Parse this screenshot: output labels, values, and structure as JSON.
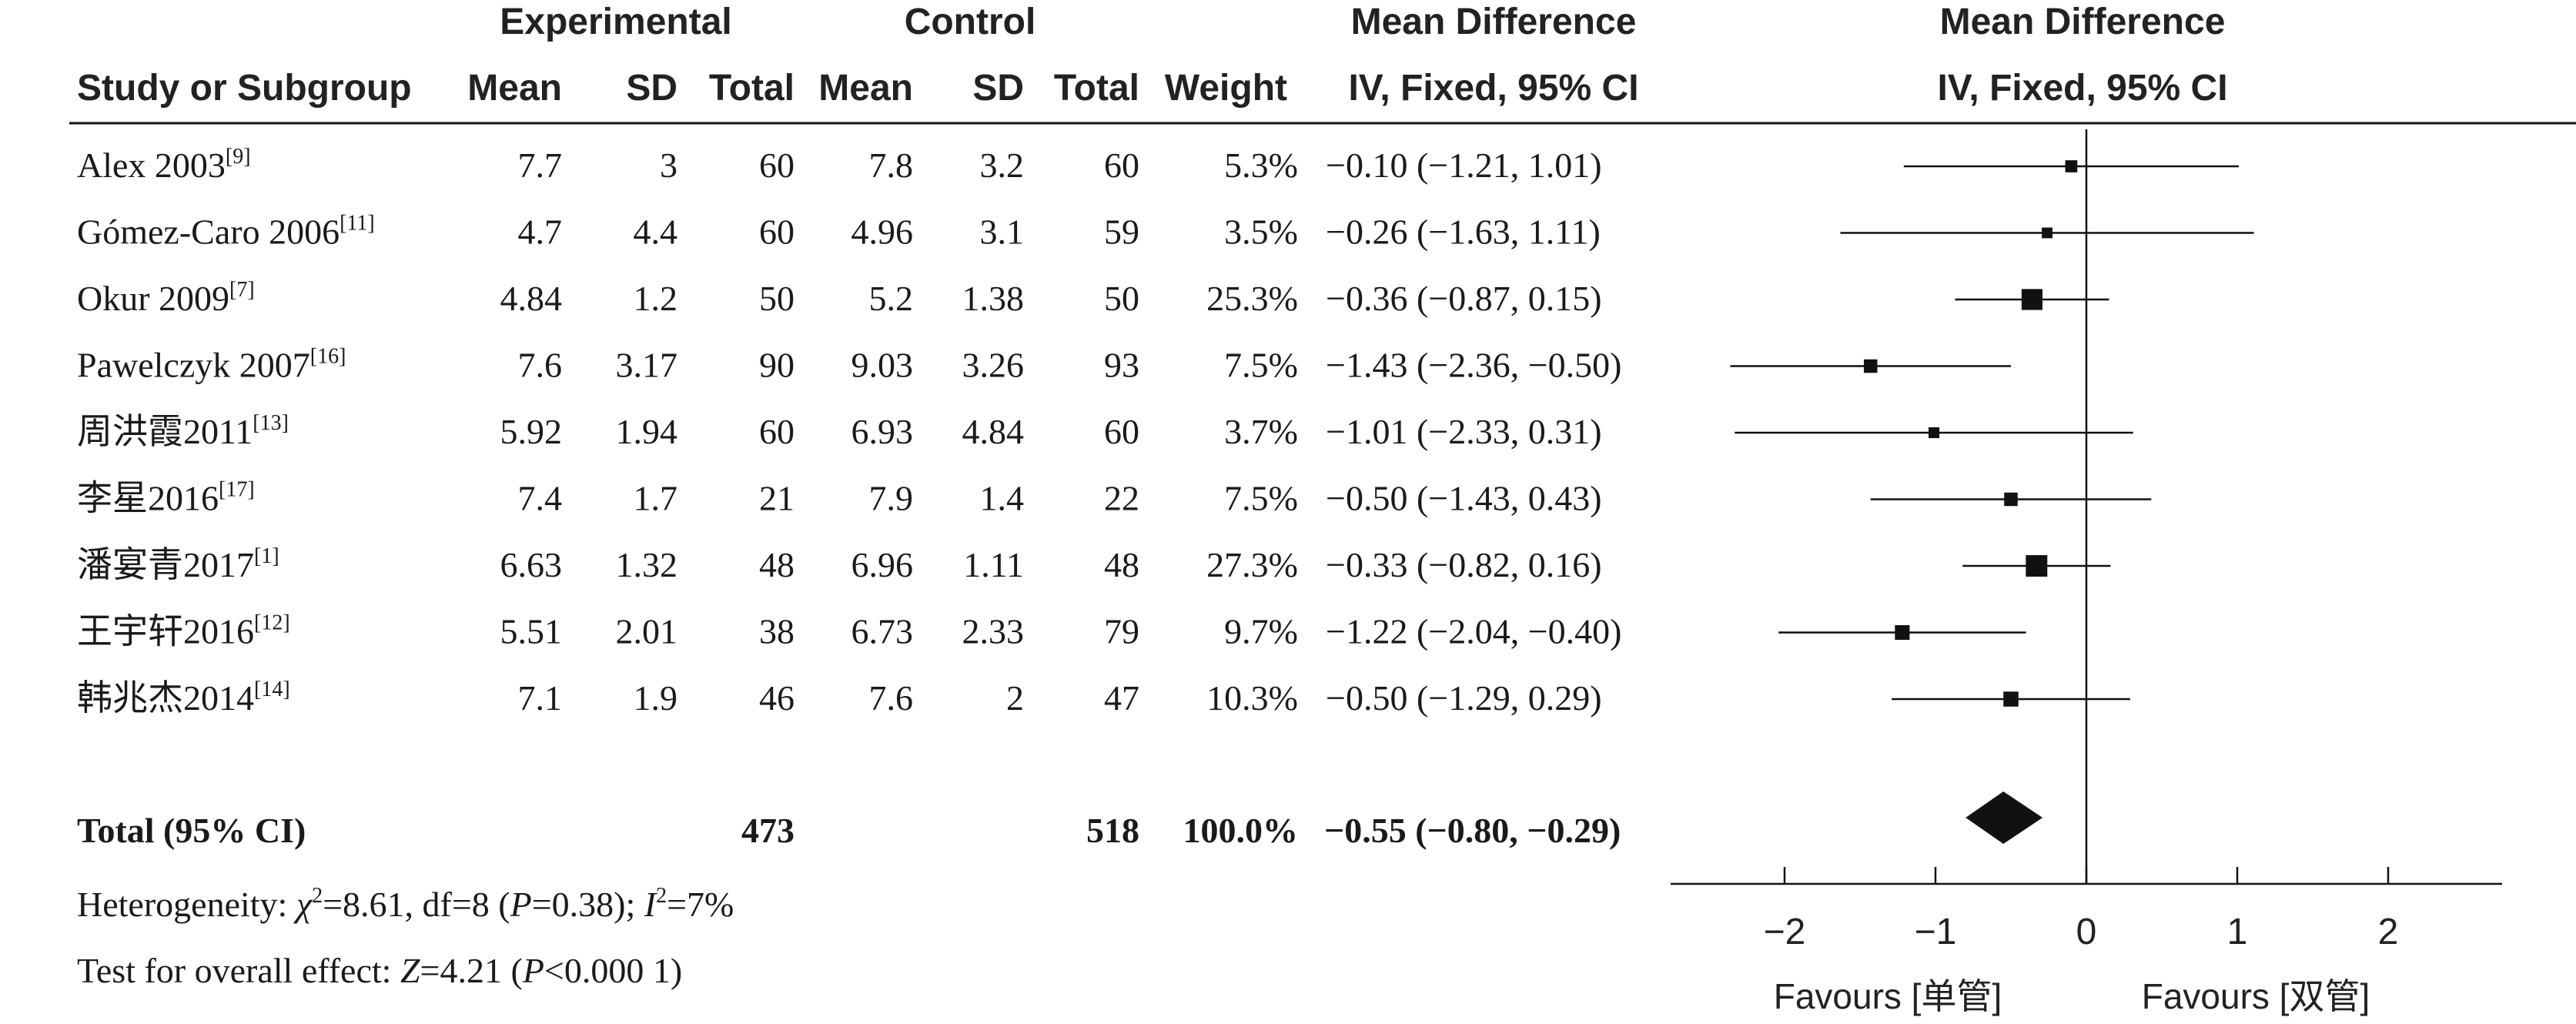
{
  "headers": {
    "group_experimental": "Experimental",
    "group_control": "Control",
    "group_md": "Mean Difference",
    "group_plot": "Mean Difference",
    "study": "Study or Subgroup",
    "mean": "Mean",
    "sd": "SD",
    "total": "Total",
    "weight": "Weight",
    "method": "IV, Fixed, 95% CI",
    "plot_method": "IV, Fixed, 95% CI"
  },
  "studies": [
    {
      "name": "Alex 2003",
      "ref": "[9]",
      "exp_mean": "7.7",
      "exp_sd": "3",
      "exp_total": "60",
      "ctl_mean": "7.8",
      "ctl_sd": "3.2",
      "ctl_total": "60",
      "weight": "5.3%",
      "ci_text": "−0.10 (−1.21, 1.01)",
      "md": -0.1,
      "lo": -1.21,
      "hi": 1.01,
      "w": 5.3
    },
    {
      "name": "Gómez-Caro 2006",
      "ref": "[11]",
      "exp_mean": "4.7",
      "exp_sd": "4.4",
      "exp_total": "60",
      "ctl_mean": "4.96",
      "ctl_sd": "3.1",
      "ctl_total": "59",
      "weight": "3.5%",
      "ci_text": "−0.26 (−1.63, 1.11)",
      "md": -0.26,
      "lo": -1.63,
      "hi": 1.11,
      "w": 3.5
    },
    {
      "name": "Okur 2009",
      "ref": "[7]",
      "exp_mean": "4.84",
      "exp_sd": "1.2",
      "exp_total": "50",
      "ctl_mean": "5.2",
      "ctl_sd": "1.38",
      "ctl_total": "50",
      "weight": "25.3%",
      "ci_text": "−0.36 (−0.87, 0.15)",
      "md": -0.36,
      "lo": -0.87,
      "hi": 0.15,
      "w": 25.3
    },
    {
      "name": "Pawelczyk 2007",
      "ref": "[16]",
      "exp_mean": "7.6",
      "exp_sd": "3.17",
      "exp_total": "90",
      "ctl_mean": "9.03",
      "ctl_sd": "3.26",
      "ctl_total": "93",
      "weight": "7.5%",
      "ci_text": "−1.43 (−2.36, −0.50)",
      "md": -1.43,
      "lo": -2.36,
      "hi": -0.5,
      "w": 7.5
    },
    {
      "name": "周洪霞2011",
      "ref": "[13]",
      "exp_mean": "5.92",
      "exp_sd": "1.94",
      "exp_total": "60",
      "ctl_mean": "6.93",
      "ctl_sd": "4.84",
      "ctl_total": "60",
      "weight": "3.7%",
      "ci_text": "−1.01 (−2.33, 0.31)",
      "md": -1.01,
      "lo": -2.33,
      "hi": 0.31,
      "w": 3.7
    },
    {
      "name": "李星2016",
      "ref": "[17]",
      "exp_mean": "7.4",
      "exp_sd": "1.7",
      "exp_total": "21",
      "ctl_mean": "7.9",
      "ctl_sd": "1.4",
      "ctl_total": "22",
      "weight": "7.5%",
      "ci_text": "−0.50 (−1.43, 0.43)",
      "md": -0.5,
      "lo": -1.43,
      "hi": 0.43,
      "w": 7.5
    },
    {
      "name": "潘宴青2017",
      "ref": "[1]",
      "exp_mean": "6.63",
      "exp_sd": "1.32",
      "exp_total": "48",
      "ctl_mean": "6.96",
      "ctl_sd": "1.11",
      "ctl_total": "48",
      "weight": "27.3%",
      "ci_text": "−0.33 (−0.82, 0.16)",
      "md": -0.33,
      "lo": -0.82,
      "hi": 0.16,
      "w": 27.3
    },
    {
      "name": "王宇轩2016",
      "ref": "[12]",
      "exp_mean": "5.51",
      "exp_sd": "2.01",
      "exp_total": "38",
      "ctl_mean": "6.73",
      "ctl_sd": "2.33",
      "ctl_total": "79",
      "weight": "9.7%",
      "ci_text": "−1.22 (−2.04, −0.40)",
      "md": -1.22,
      "lo": -2.04,
      "hi": -0.4,
      "w": 9.7
    },
    {
      "name": "韩兆杰2014",
      "ref": "[14]",
      "exp_mean": "7.1",
      "exp_sd": "1.9",
      "exp_total": "46",
      "ctl_mean": "7.6",
      "ctl_sd": "2",
      "ctl_total": "47",
      "weight": "10.3%",
      "ci_text": "−0.50 (−1.29, 0.29)",
      "md": -0.5,
      "lo": -1.29,
      "hi": 0.29,
      "w": 10.3
    }
  ],
  "total": {
    "label": "Total (95% CI)",
    "exp_total": "473",
    "ctl_total": "518",
    "weight": "100.0%",
    "ci_text": "−0.55 (−0.80, −0.29)",
    "md": -0.55,
    "lo": -0.8,
    "hi": -0.29
  },
  "heterogeneity": {
    "prefix": "Heterogeneity: ",
    "chi_symbol": "χ",
    "chi_value": "=8.61, df=8 (",
    "p_symbol": "P",
    "p_value": "=0.38); ",
    "i_symbol": "I",
    "i_value": "=7%"
  },
  "overall_effect": {
    "prefix": "Test for overall effect: ",
    "z_symbol": "Z",
    "z_value": "=4.21 (",
    "p_symbol": "P",
    "p_value": "<0.000 1)"
  },
  "chart_data": {
    "type": "forest",
    "xlim": [
      -2.75,
      2.75
    ],
    "ticks": [
      -2,
      -1,
      0,
      1,
      2
    ],
    "tick_labels": [
      "−2",
      "−1",
      "0",
      "1",
      "2"
    ],
    "favours_left": "Favours [单管]",
    "favours_right": "Favours [双管]",
    "series": [
      {
        "md": -0.1,
        "lo": -1.21,
        "hi": 1.01,
        "weight": 5.3
      },
      {
        "md": -0.26,
        "lo": -1.63,
        "hi": 1.11,
        "weight": 3.5
      },
      {
        "md": -0.36,
        "lo": -0.87,
        "hi": 0.15,
        "weight": 25.3
      },
      {
        "md": -1.43,
        "lo": -2.36,
        "hi": -0.5,
        "weight": 7.5
      },
      {
        "md": -1.01,
        "lo": -2.33,
        "hi": 0.31,
        "weight": 3.7
      },
      {
        "md": -0.5,
        "lo": -1.43,
        "hi": 0.43,
        "weight": 7.5
      },
      {
        "md": -0.33,
        "lo": -0.82,
        "hi": 0.16,
        "weight": 27.3
      },
      {
        "md": -1.22,
        "lo": -2.04,
        "hi": -0.4,
        "weight": 9.7
      },
      {
        "md": -0.5,
        "lo": -1.29,
        "hi": 0.29,
        "weight": 10.3
      }
    ],
    "pooled": {
      "md": -0.55,
      "lo": -0.8,
      "hi": -0.29
    }
  }
}
